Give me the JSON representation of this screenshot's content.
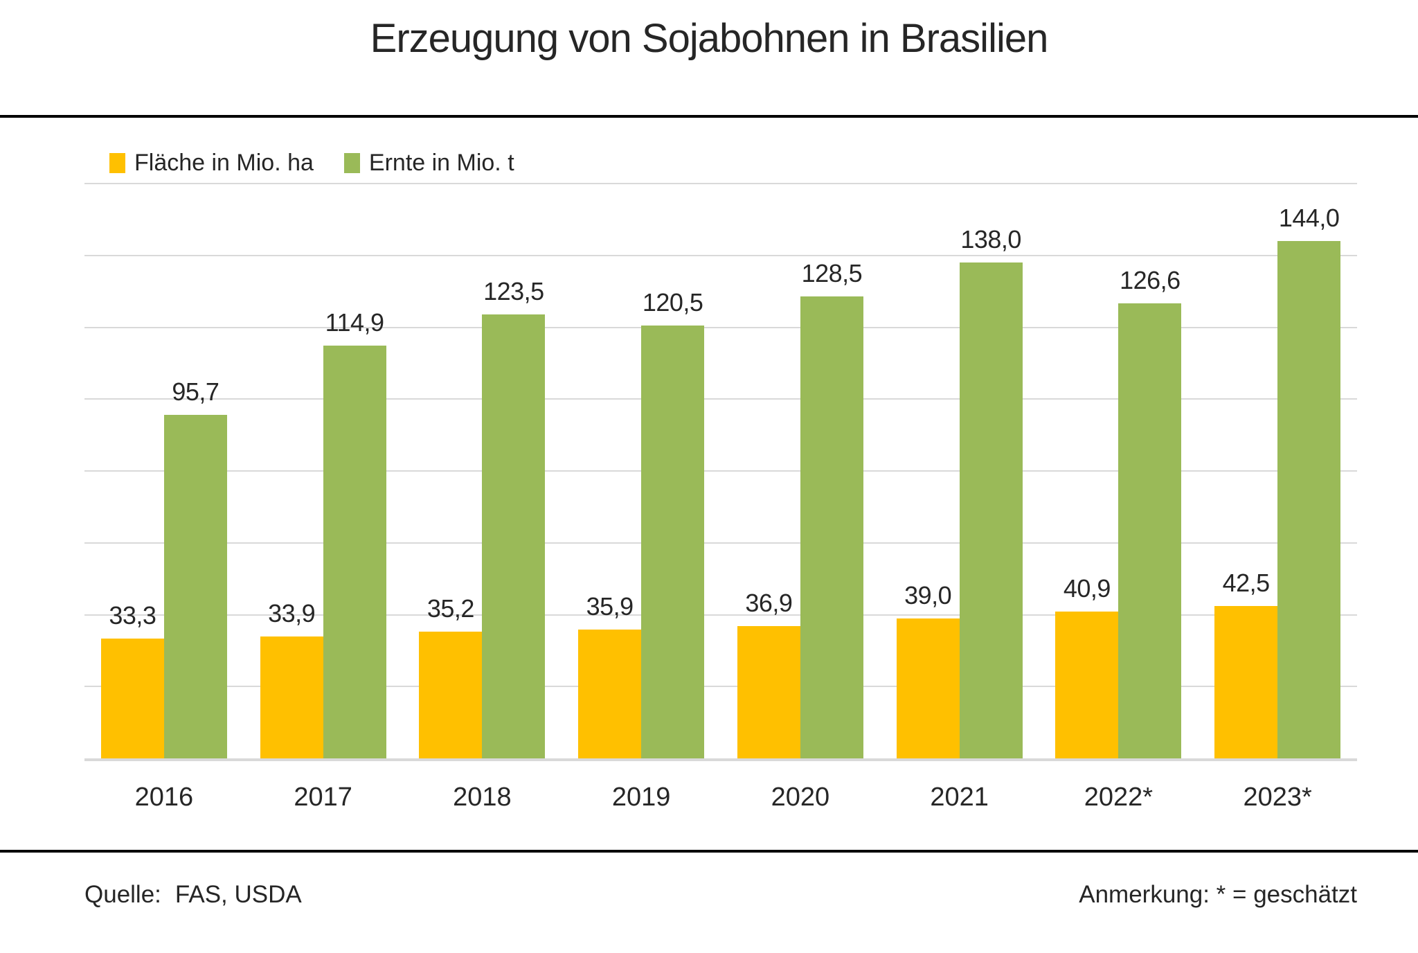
{
  "title": "Erzeugung von Sojabohnen in Brasilien",
  "legend": {
    "items": [
      {
        "label": "Fläche in Mio. ha",
        "color": "#FFC000"
      },
      {
        "label": "Ernte in Mio. t",
        "color": "#9ABA58"
      }
    ]
  },
  "footer": {
    "source_label": "Quelle:",
    "source_value": "FAS, USDA",
    "note": "Anmerkung: * = geschätzt"
  },
  "chart_data": {
    "type": "bar",
    "title": "Erzeugung von Sojabohnen in Brasilien",
    "categories": [
      "2016",
      "2017",
      "2018",
      "2019",
      "2020",
      "2021",
      "2022*",
      "2023*"
    ],
    "series": [
      {
        "name": "Fläche in Mio. ha",
        "color": "#FFC000",
        "values": [
          33.3,
          33.9,
          35.2,
          35.9,
          36.9,
          39.0,
          40.9,
          42.5
        ],
        "labels": [
          "33,3",
          "33,9",
          "35,2",
          "35,9",
          "36,9",
          "39,0",
          "40,9",
          "42,5"
        ]
      },
      {
        "name": "Ernte in Mio. t",
        "color": "#9ABA58",
        "values": [
          95.7,
          114.9,
          123.5,
          120.5,
          128.5,
          138.0,
          126.6,
          144.0
        ],
        "labels": [
          "95,7",
          "114,9",
          "123,5",
          "120,5",
          "128,5",
          "138,0",
          "126,6",
          "144,0"
        ]
      }
    ],
    "xlabel": "",
    "ylabel": "",
    "ylim": [
      0,
      160
    ],
    "grid_step": 20,
    "grid": true,
    "legend_position": "top-left",
    "value_labels": true,
    "note": "* = geschätzt",
    "source": "FAS, USDA"
  }
}
